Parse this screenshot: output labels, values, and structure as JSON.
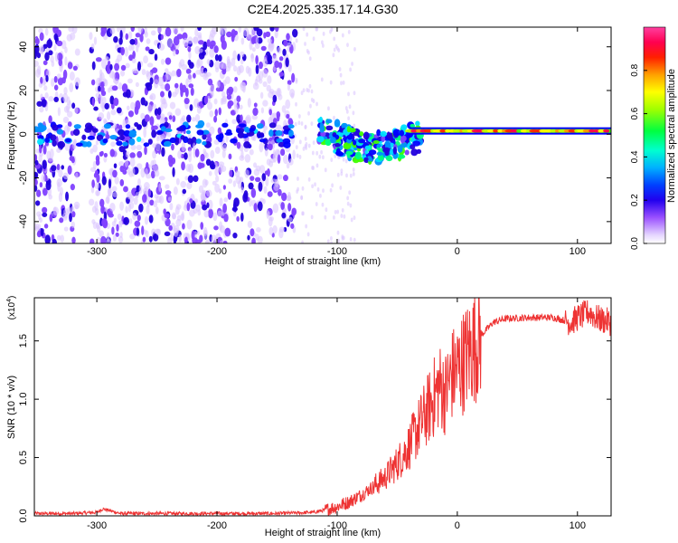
{
  "page": {
    "title": "C2E4.2025.335.17.14.G30"
  },
  "chart_data": [
    {
      "type": "heatmap",
      "title": "C2E4.2025.335.17.14.G30",
      "xlabel": "Height of straight line (km)",
      "ylabel": "Frequency (Hz)",
      "xlim": [
        -352,
        128
      ],
      "ylim": [
        -50,
        49
      ],
      "xticks": [
        -300,
        -200,
        -100,
        0,
        100
      ],
      "yticks": [
        -40,
        -20,
        0,
        20,
        40
      ],
      "colorbar": {
        "label": "Normalized spectral amplitude",
        "range": [
          0,
          1
        ],
        "ticks": [
          0.0,
          0.2,
          0.4,
          0.6,
          0.8
        ],
        "colormap": [
          "#ffffff",
          "#d9c2ff",
          "#8040ff",
          "#2200dd",
          "#0000ff",
          "#0090ff",
          "#00e0ff",
          "#00ff80",
          "#40ff00",
          "#c0ff00",
          "#ffff00",
          "#ff9000",
          "#ff2000",
          "#ff0050",
          "#ff40a0"
        ]
      },
      "features": {
        "noise_region_km": [
          -352,
          -135
        ],
        "noise_gap_km": [
          -316,
          -305
        ],
        "carrier_line_hz": 1.5,
        "carrier_start_km": -40,
        "disturbed_band_km": [
          -115,
          -30
        ]
      }
    },
    {
      "type": "line",
      "xlabel": "Height of straight line (km)",
      "ylabel": "SNR (10 * v/v)",
      "exponent_label": "(x10",
      "exponent_sup": "4",
      "exponent_close": ")",
      "xlim": [
        -352,
        128
      ],
      "ylim": [
        0,
        1.87
      ],
      "xticks": [
        -300,
        -200,
        -100,
        0,
        100
      ],
      "yticks": [
        0.0,
        0.5,
        1.0,
        1.5
      ],
      "series": [
        {
          "name": "SNR",
          "color": "#ee3333",
          "x": [
            -352,
            -320,
            -300,
            -295,
            -280,
            -250,
            -200,
            -150,
            -120,
            -110,
            -100,
            -90,
            -80,
            -70,
            -60,
            -50,
            -40,
            -30,
            -20,
            -15,
            -10,
            -5,
            0,
            10,
            20,
            30,
            40,
            60,
            80,
            95,
            100,
            105,
            110,
            115,
            120,
            128
          ],
          "y": [
            0.02,
            0.02,
            0.03,
            0.06,
            0.02,
            0.02,
            0.02,
            0.02,
            0.03,
            0.05,
            0.08,
            0.12,
            0.18,
            0.25,
            0.33,
            0.45,
            0.6,
            0.8,
            1.0,
            1.12,
            1.05,
            1.2,
            1.25,
            1.4,
            1.55,
            1.66,
            1.69,
            1.7,
            1.7,
            1.66,
            1.7,
            1.72,
            1.75,
            1.7,
            1.68,
            1.66
          ]
        }
      ]
    }
  ]
}
